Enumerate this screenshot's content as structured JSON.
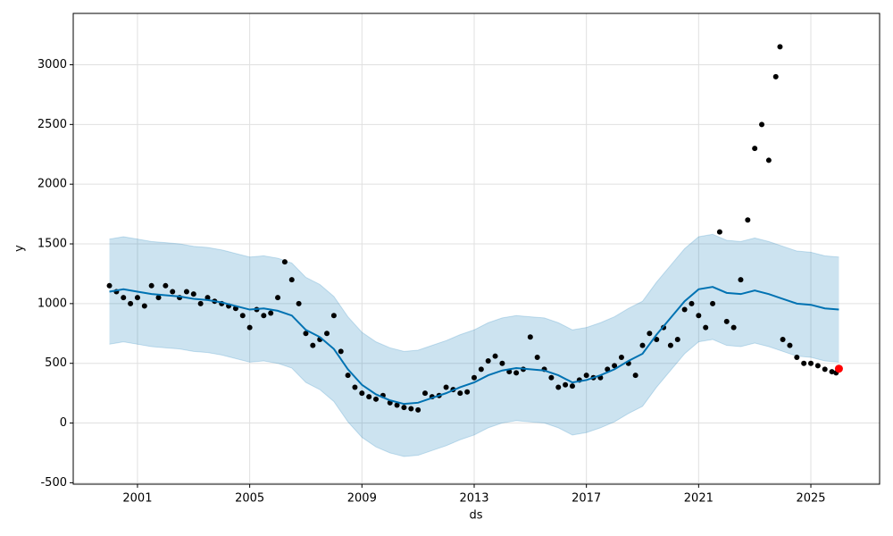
{
  "chart_data": {
    "type": "forecast",
    "xlabel": "ds",
    "ylabel": "y",
    "xlim": [
      1998.71,
      2027.45
    ],
    "ylim": [
      -512,
      3430
    ],
    "xticks": [
      2001,
      2005,
      2009,
      2013,
      2017,
      2021,
      2025
    ],
    "yticks": [
      -500,
      0,
      500,
      1000,
      1500,
      2000,
      2500,
      3000
    ],
    "grid": true,
    "observed": {
      "color": "#000000",
      "x": [
        2000,
        2000.25,
        2000.5,
        2000.75,
        2001,
        2001.25,
        2001.5,
        2001.75,
        2002,
        2002.25,
        2002.5,
        2002.75,
        2003,
        2003.25,
        2003.5,
        2003.75,
        2004,
        2004.25,
        2004.5,
        2004.75,
        2005,
        2005.25,
        2005.5,
        2005.75,
        2006,
        2006.25,
        2006.5,
        2006.75,
        2007,
        2007.25,
        2007.5,
        2007.75,
        2008,
        2008.25,
        2008.5,
        2008.75,
        2009,
        2009.25,
        2009.5,
        2009.75,
        2010,
        2010.25,
        2010.5,
        2010.75,
        2011,
        2011.25,
        2011.5,
        2011.75,
        2012,
        2012.25,
        2012.5,
        2012.75,
        2013,
        2013.25,
        2013.5,
        2013.75,
        2014,
        2014.25,
        2014.5,
        2014.75,
        2015,
        2015.25,
        2015.5,
        2015.75,
        2016,
        2016.25,
        2016.5,
        2016.75,
        2017,
        2017.25,
        2017.5,
        2017.75,
        2018,
        2018.25,
        2018.5,
        2018.75,
        2019,
        2019.25,
        2019.5,
        2019.75,
        2020,
        2020.25,
        2020.5,
        2020.75,
        2021,
        2021.25,
        2021.5,
        2021.75,
        2022,
        2022.25,
        2022.5,
        2022.75,
        2023,
        2023.25,
        2023.5,
        2023.75,
        2023.9,
        2024,
        2024.25,
        2024.5,
        2024.75,
        2025,
        2025.25,
        2025.5,
        2025.75,
        2025.9
      ],
      "values": [
        1150,
        1100,
        1050,
        1000,
        1050,
        980,
        1150,
        1050,
        1150,
        1100,
        1050,
        1100,
        1080,
        1000,
        1050,
        1020,
        1000,
        980,
        960,
        900,
        800,
        950,
        900,
        920,
        1050,
        1350,
        1200,
        1000,
        750,
        650,
        700,
        750,
        900,
        600,
        400,
        300,
        250,
        220,
        200,
        230,
        170,
        150,
        130,
        120,
        110,
        250,
        220,
        230,
        300,
        280,
        250,
        260,
        380,
        450,
        520,
        560,
        500,
        430,
        420,
        450,
        720,
        550,
        450,
        380,
        300,
        320,
        310,
        360,
        400,
        380,
        380,
        450,
        480,
        550,
        500,
        400,
        650,
        750,
        700,
        800,
        650,
        700,
        950,
        1000,
        900,
        800,
        1000,
        1600,
        850,
        800,
        1200,
        1700,
        2300,
        2500,
        2200,
        2900,
        3150,
        700,
        650,
        550,
        500,
        500,
        480,
        450,
        430,
        420
      ]
    },
    "highlight": {
      "color": "#ff0000",
      "x": 2026.0,
      "value": 455
    },
    "forecast": {
      "color": "#0072b2",
      "x": [
        2000,
        2000.5,
        2001,
        2001.5,
        2002,
        2002.5,
        2003,
        2003.5,
        2004,
        2004.5,
        2005,
        2005.5,
        2006,
        2006.5,
        2007,
        2007.5,
        2008,
        2008.5,
        2009,
        2009.5,
        2010,
        2010.5,
        2011,
        2011.5,
        2012,
        2012.5,
        2013,
        2013.5,
        2014,
        2014.5,
        2015,
        2015.5,
        2016,
        2016.5,
        2017,
        2017.5,
        2018,
        2018.5,
        2019,
        2019.5,
        2020,
        2020.5,
        2021,
        2021.5,
        2022,
        2022.5,
        2023,
        2023.5,
        2024,
        2024.5,
        2025,
        2025.5,
        2026
      ],
      "values": [
        1100,
        1120,
        1100,
        1080,
        1070,
        1060,
        1040,
        1030,
        1010,
        980,
        950,
        960,
        940,
        900,
        780,
        720,
        620,
        450,
        320,
        240,
        190,
        160,
        170,
        210,
        250,
        300,
        340,
        400,
        440,
        460,
        450,
        440,
        400,
        340,
        360,
        400,
        450,
        520,
        580,
        740,
        880,
        1020,
        1120,
        1140,
        1090,
        1080,
        1110,
        1080,
        1040,
        1000,
        990,
        960,
        950
      ],
      "upper": [
        1540,
        1560,
        1540,
        1520,
        1510,
        1500,
        1480,
        1470,
        1450,
        1420,
        1390,
        1400,
        1380,
        1340,
        1220,
        1160,
        1060,
        890,
        760,
        680,
        630,
        600,
        610,
        650,
        690,
        740,
        780,
        840,
        880,
        900,
        890,
        880,
        840,
        780,
        800,
        840,
        890,
        960,
        1020,
        1180,
        1320,
        1460,
        1560,
        1580,
        1530,
        1520,
        1550,
        1520,
        1480,
        1440,
        1430,
        1400,
        1390
      ],
      "lower": [
        660,
        680,
        660,
        640,
        630,
        620,
        600,
        590,
        570,
        540,
        510,
        520,
        500,
        460,
        340,
        280,
        180,
        10,
        -120,
        -200,
        -250,
        -280,
        -270,
        -230,
        -190,
        -140,
        -100,
        -40,
        0,
        20,
        10,
        0,
        -40,
        -100,
        -80,
        -40,
        10,
        80,
        140,
        300,
        440,
        580,
        680,
        700,
        650,
        640,
        670,
        640,
        600,
        560,
        550,
        520,
        510
      ],
      "band_color": "#0072b2"
    }
  }
}
